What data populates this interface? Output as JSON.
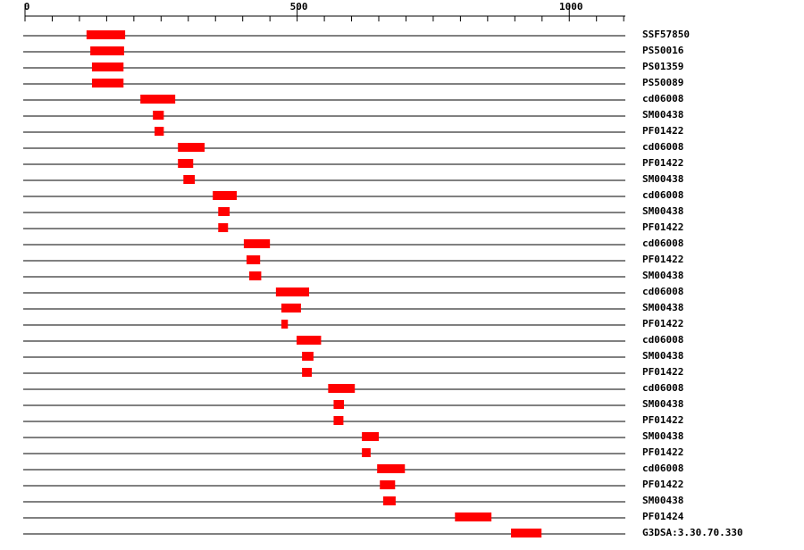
{
  "chart_data": {
    "type": "range",
    "xlim": [
      0,
      1103
    ],
    "xticks": [
      0,
      500,
      1000
    ],
    "minor_xticks": [
      0,
      50,
      100,
      150,
      200,
      250,
      300,
      350,
      400,
      450,
      500,
      550,
      600,
      650,
      700,
      750,
      800,
      850,
      900,
      950,
      1000,
      1050,
      1100
    ],
    "color": "#ff0000",
    "categories": [
      "SSF57850",
      "PS50016",
      "PS01359",
      "PS50089",
      "cd06008",
      "SM00438",
      "PF01422",
      "cd06008",
      "PF01422",
      "SM00438",
      "cd06008",
      "SM00438",
      "PF01422",
      "cd06008",
      "PF01422",
      "SM00438",
      "cd06008",
      "SM00438",
      "PF01422",
      "cd06008",
      "SM00438",
      "PF01422",
      "cd06008",
      "SM00438",
      "PF01422",
      "SM00438",
      "PF01422",
      "cd06008",
      "PF01422",
      "SM00438",
      "PF01424",
      "G3DSA:3.30.70.330"
    ],
    "start": [
      113,
      120,
      123,
      123,
      212,
      235,
      238,
      281,
      281,
      291,
      345,
      355,
      355,
      402,
      407,
      412,
      461,
      471,
      471,
      499,
      509,
      509,
      557,
      567,
      567,
      619,
      619,
      647,
      652,
      658,
      790,
      893
    ],
    "end": [
      184,
      182,
      181,
      181,
      276,
      255,
      255,
      330,
      309,
      312,
      389,
      376,
      373,
      450,
      432,
      434,
      522,
      507,
      483,
      544,
      530,
      527,
      606,
      586,
      585,
      650,
      635,
      698,
      680,
      681,
      857,
      949
    ]
  }
}
